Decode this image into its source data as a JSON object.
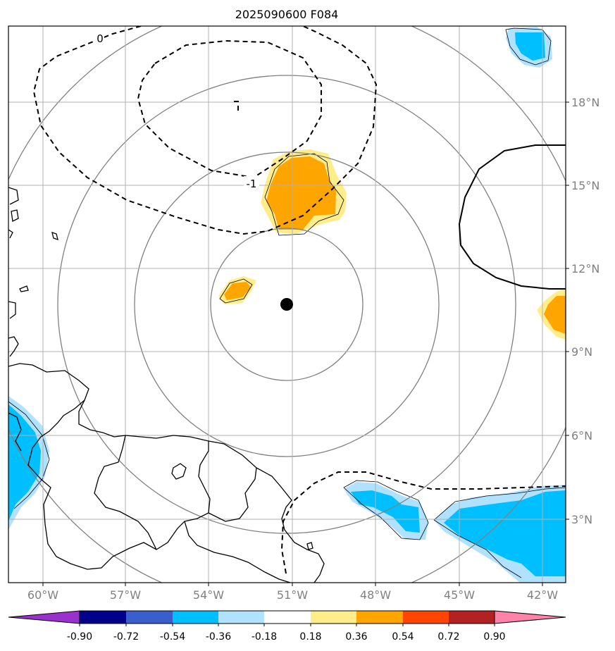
{
  "title": "2025090600 F084",
  "map": {
    "lon_range": [
      -61,
      -41.5
    ],
    "lat_range": [
      0.8,
      20.3
    ],
    "lon_ticks": [
      {
        "value": -60,
        "label": "60°W"
      },
      {
        "value": -57,
        "label": "57°W"
      },
      {
        "value": -54,
        "label": "54°W"
      },
      {
        "value": -51,
        "label": "51°W"
      },
      {
        "value": -48,
        "label": "48°W"
      },
      {
        "value": -45,
        "label": "45°W"
      },
      {
        "value": -42,
        "label": "42°W"
      }
    ],
    "lat_ticks": [
      {
        "value": 18,
        "label": "18°N"
      },
      {
        "value": 15,
        "label": "15°N"
      },
      {
        "value": 12,
        "label": "12°N"
      },
      {
        "value": 9,
        "label": "9°N"
      },
      {
        "value": 6,
        "label": "6°N"
      },
      {
        "value": 3,
        "label": "3°N"
      }
    ],
    "center": {
      "lon": -51.0,
      "lat": 10.7
    },
    "range_rings_deg": [
      2.7,
      5.4,
      8.1,
      10.8
    ],
    "contour_labels": [
      {
        "text": "0",
        "lon": -58.9,
        "lat": 19.5
      },
      {
        "text": "-1",
        "lon": -52.3,
        "lat": 15.1
      }
    ],
    "colors": {
      "coast": "#000000",
      "grid": "#b0b0b0",
      "rings": "#808080",
      "center_marker": "#000000"
    }
  },
  "colorbar": {
    "levels": [
      "-0.90",
      "-0.72",
      "-0.54",
      "-0.36",
      "-0.18",
      "0.18",
      "0.36",
      "0.54",
      "0.72",
      "0.90"
    ],
    "colors": [
      "#9932cc",
      "#00008b",
      "#3a5fcd",
      "#00bfff",
      "#b0e2ff",
      "#ffffff",
      "#ffec8b",
      "#ffa500",
      "#ff4500",
      "#b22222",
      "#ff82ab"
    ]
  }
}
